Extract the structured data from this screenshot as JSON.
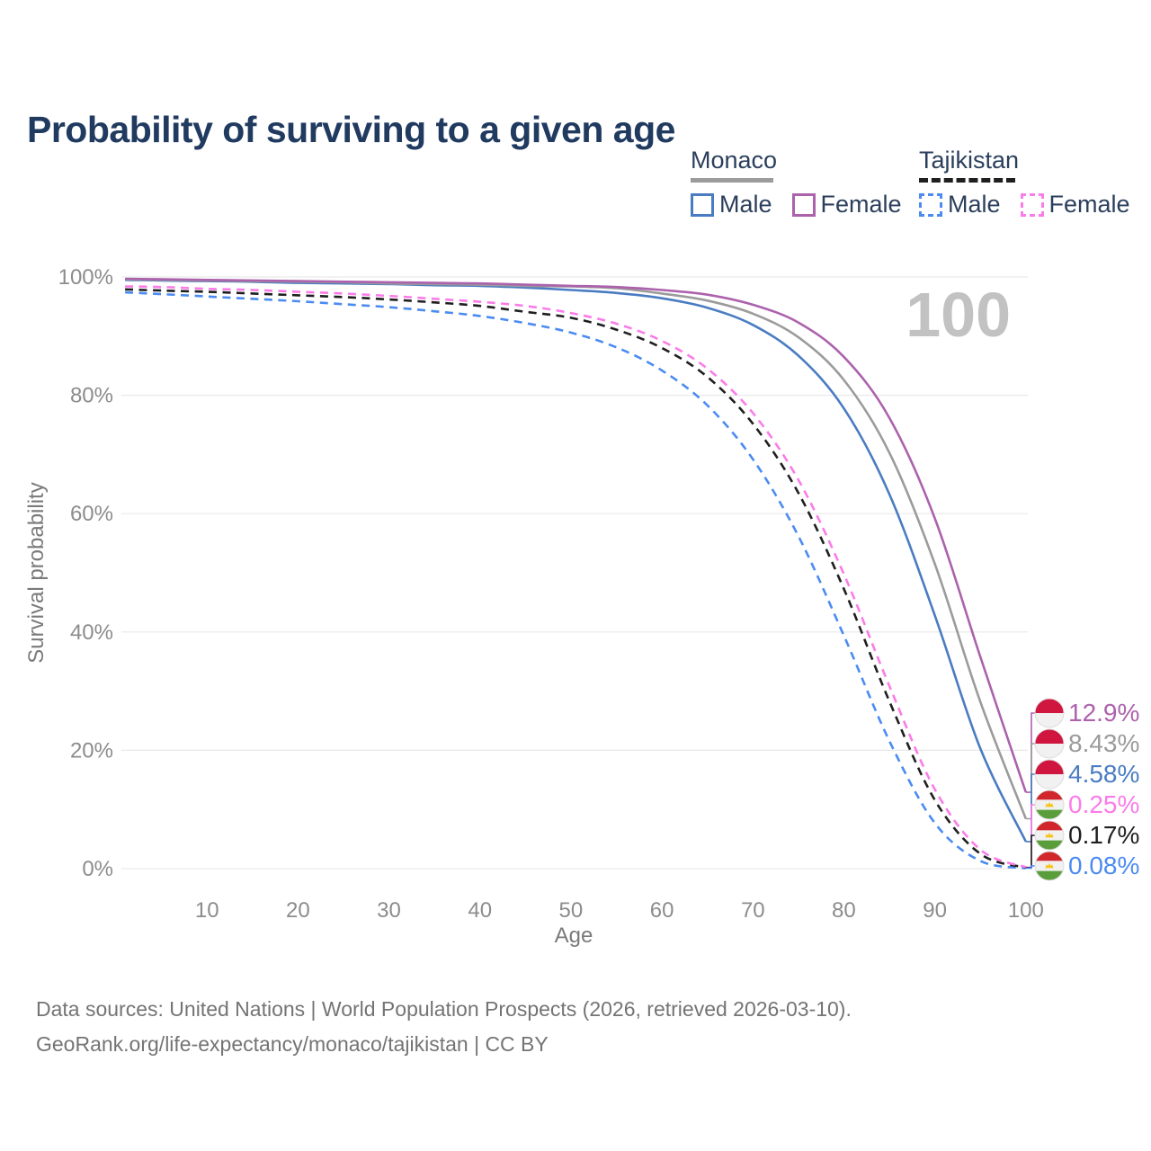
{
  "page": {
    "footer_line1": "Data sources: United Nations | World Population Prospects (2026, retrieved 2026-03-10).",
    "footer_line2": "GeoRank.org/life-expectancy/monaco/tajikistan | CC BY"
  },
  "legend": {
    "monaco": {
      "name": "Monaco",
      "male_label": "Male",
      "female_label": "Female",
      "male_color": "#4a7cc2",
      "female_color": "#ac62ad",
      "line_color": "#9b9b9b",
      "line_style": "solid"
    },
    "tajikistan": {
      "name": "Tajikistan",
      "male_label": "Male",
      "female_label": "Female",
      "male_color": "#4b8bf2",
      "female_color": "#fb7ce8",
      "line_color": "#1f1f1f",
      "line_style": "dashed"
    }
  },
  "flags": {
    "monaco": {
      "red": "#d0153f",
      "white": "#f1f1f1"
    },
    "tajikistan": {
      "red": "#d0262c",
      "white": "#f1f1f1",
      "green": "#5a9e3c",
      "gold": "#f5c51d"
    }
  },
  "chart_data": {
    "type": "line",
    "title": "Probability of surviving to a given age",
    "xlabel": "Age",
    "ylabel": "Survival probability",
    "x_ticks": [
      10,
      20,
      30,
      40,
      50,
      60,
      70,
      80,
      90,
      100
    ],
    "y_tick_labels": [
      "100%",
      "80%",
      "60%",
      "40%",
      "20%",
      "0%"
    ],
    "y_tick_values": [
      100,
      80,
      60,
      40,
      20,
      0
    ],
    "xlim": [
      0,
      100
    ],
    "ylim": [
      0,
      100
    ],
    "grid": "horizontal",
    "legend_position": "top-right",
    "hover_age_label": "100",
    "ages": [
      0,
      1,
      5,
      10,
      15,
      20,
      25,
      30,
      35,
      40,
      45,
      50,
      55,
      60,
      65,
      70,
      75,
      80,
      85,
      90,
      95,
      100
    ],
    "series": [
      {
        "name": "Monaco Female",
        "country": "Monaco",
        "flag": "monaco",
        "color": "#ac62ad",
        "dashed": false,
        "end_label": "12.9%",
        "values": [
          100,
          99.7,
          99.6,
          99.5,
          99.4,
          99.3,
          99.2,
          99.1,
          99.0,
          98.9,
          98.7,
          98.5,
          98.3,
          97.8,
          97.0,
          95.3,
          92.3,
          86.5,
          76.2,
          59.2,
          35.8,
          12.9
        ]
      },
      {
        "name": "Monaco",
        "country": "Monaco",
        "flag": "monaco",
        "color": "#9b9b9b",
        "dashed": false,
        "end_label": "8.43%",
        "values": [
          100,
          99.6,
          99.5,
          99.4,
          99.3,
          99.2,
          99.1,
          98.9,
          98.8,
          98.7,
          98.5,
          98.4,
          98.1,
          97.2,
          96.0,
          93.8,
          89.8,
          82.6,
          70.3,
          51.5,
          28.2,
          8.43
        ]
      },
      {
        "name": "Monaco Male",
        "country": "Monaco",
        "flag": "monaco",
        "color": "#4a7cc2",
        "dashed": false,
        "end_label": "4.58%",
        "values": [
          100,
          99.5,
          99.4,
          99.3,
          99.2,
          99.0,
          98.9,
          98.8,
          98.6,
          98.5,
          98.2,
          97.8,
          97.3,
          96.4,
          94.8,
          91.9,
          86.7,
          77.8,
          63.3,
          42.8,
          20.3,
          4.58
        ]
      },
      {
        "name": "Tajikistan Female",
        "country": "Tajikistan",
        "flag": "tajikistan",
        "color": "#fb7ce8",
        "dashed": true,
        "end_label": "0.25%",
        "values": [
          100,
          98.4,
          98.3,
          98.0,
          97.8,
          97.5,
          97.2,
          96.8,
          96.3,
          95.8,
          95.1,
          93.9,
          92.1,
          89.2,
          84.5,
          77.0,
          65.7,
          49.8,
          30.9,
          13.4,
          3.2,
          0.25
        ]
      },
      {
        "name": "Tajikistan",
        "country": "Tajikistan",
        "flag": "tajikistan",
        "color": "#1f1f1f",
        "dashed": true,
        "end_label": "0.17%",
        "values": [
          100,
          97.9,
          97.7,
          97.5,
          97.2,
          96.9,
          96.6,
          96.2,
          95.7,
          95.1,
          94.1,
          93.1,
          91.1,
          88.0,
          83.1,
          75.2,
          63.5,
          47.3,
          28.3,
          11.6,
          2.5,
          0.17
        ]
      },
      {
        "name": "Tajikistan Male",
        "country": "Tajikistan",
        "flag": "tajikistan",
        "color": "#4b8bf2",
        "dashed": true,
        "end_label": "0.08%",
        "values": [
          100,
          97.4,
          97.1,
          96.7,
          96.3,
          95.9,
          95.4,
          94.9,
          94.2,
          93.4,
          92.2,
          90.6,
          88.1,
          84.2,
          78.3,
          69.2,
          56.2,
          39.4,
          21.6,
          7.7,
          1.3,
          0.08
        ]
      }
    ]
  }
}
